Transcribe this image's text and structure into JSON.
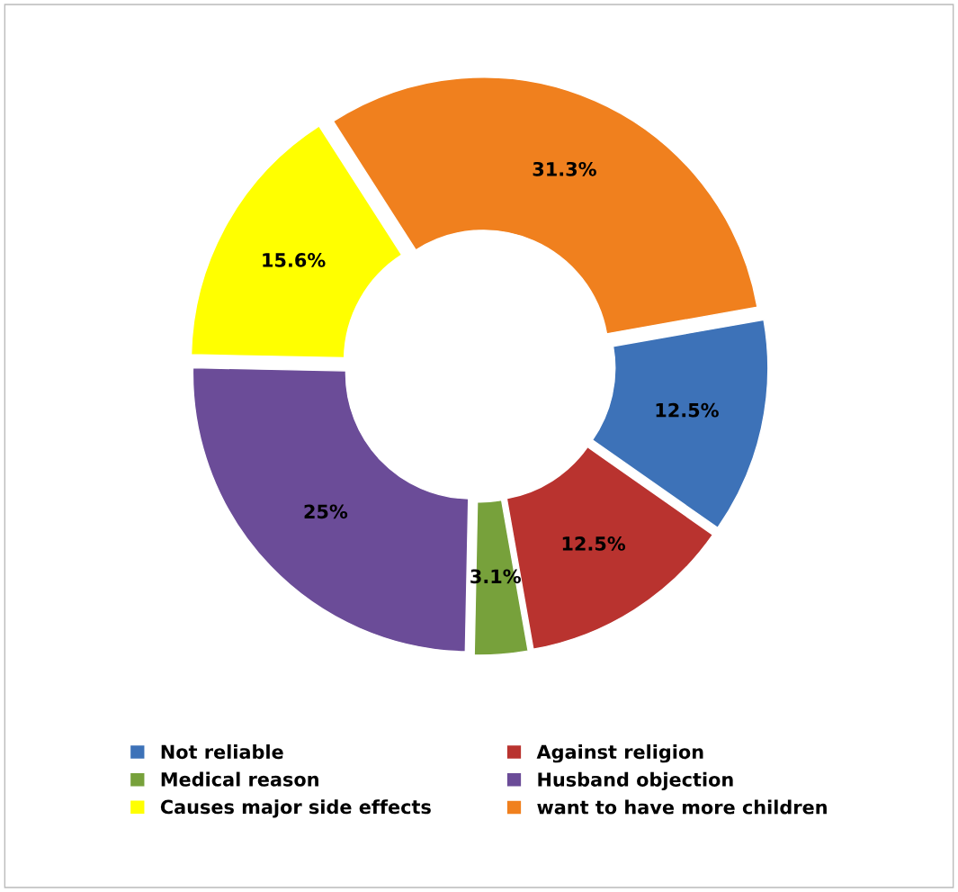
{
  "chart_data": {
    "type": "donut",
    "categories": [
      "Not reliable",
      "Against religion",
      "Medical reason",
      "Husband objection",
      "Causes major side effects",
      "want to have more children"
    ],
    "values": [
      12.5,
      12.5,
      3.1,
      25,
      15.6,
      31.3
    ],
    "value_labels": [
      "12.5%",
      "12.5%",
      "3.1%",
      "25%",
      "15.6%",
      "31.3%"
    ],
    "colors": [
      "#3d72b8",
      "#b9332f",
      "#77a13b",
      "#6b4c98",
      "#ffff00",
      "#f0801e"
    ],
    "legend": "bottom"
  }
}
